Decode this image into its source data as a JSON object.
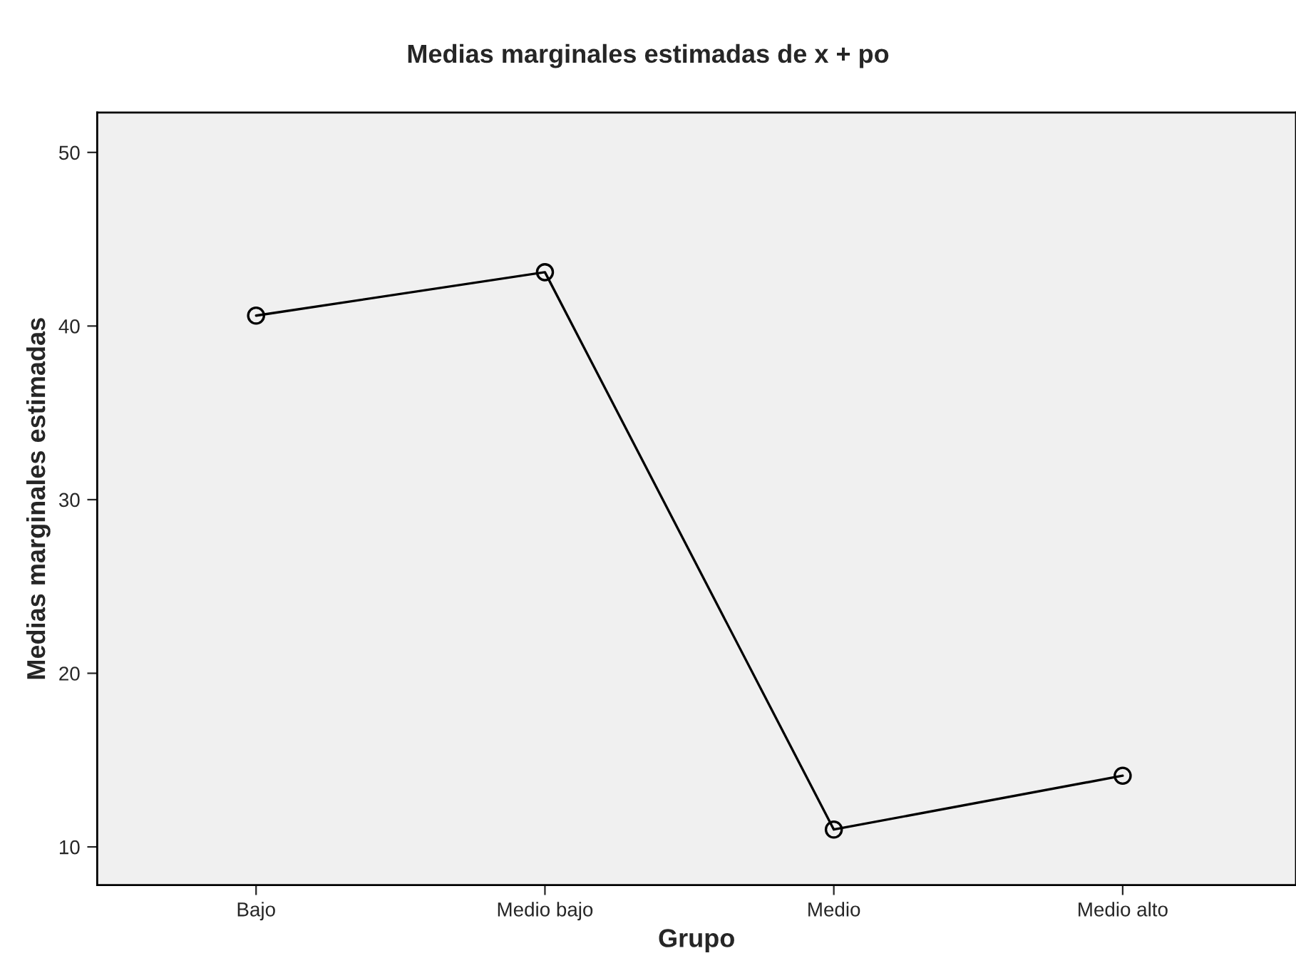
{
  "chart_data": {
    "type": "line",
    "title": "Medias marginales estimadas de x + po",
    "xlabel": "Grupo",
    "ylabel": "Medias marginales estimadas",
    "categories": [
      "Bajo",
      "Medio bajo",
      "Medio",
      "Medio alto"
    ],
    "series": [
      {
        "color": "#000000",
        "values": [
          40.6,
          43.1,
          11.0,
          14.1
        ]
      }
    ],
    "ylim": [
      7.8,
      52.3
    ],
    "yticks": [
      10,
      20,
      30,
      40,
      50
    ],
    "grid": false,
    "marker": "circle",
    "line_style": "solid"
  }
}
